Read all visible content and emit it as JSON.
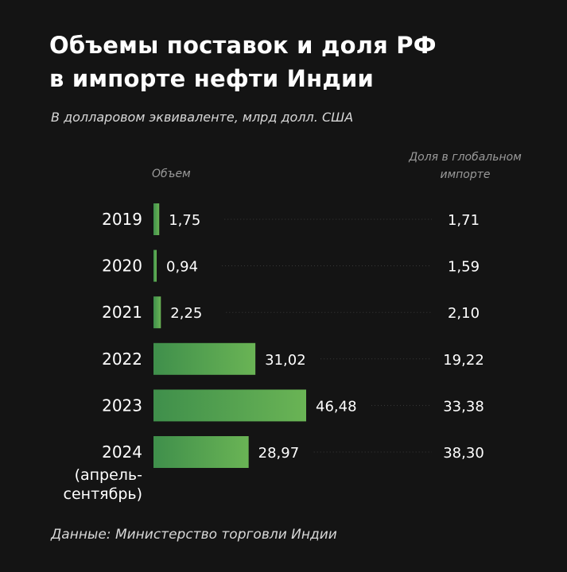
{
  "title_line1": "Объемы поставок и доля РФ",
  "title_line2": "в импорте нефти Индии",
  "subtitle": "В долларовом эквиваленте, млрд долл. США",
  "volume_header": "Объем",
  "share_header_line1": "Доля в глобальном",
  "share_header_line2": "импорте",
  "source": "Данные: Министерство торговли Индии",
  "colors": {
    "background": "#141414",
    "bar_start": "#3f8f4b",
    "bar_end": "#6ab455",
    "leader": "#3a3a3a"
  },
  "chart_data": {
    "type": "bar",
    "orientation": "horizontal",
    "categories": [
      "2019",
      "2020",
      "2021",
      "2022",
      "2023",
      "2024"
    ],
    "category_notes": [
      "",
      "",
      "",
      "",
      "",
      "(апрель-сентябрь)"
    ],
    "category_notes_display": [
      [],
      [],
      [],
      [],
      [],
      [
        "(апрель-",
        "сентябрь)"
      ]
    ],
    "series": [
      {
        "name": "Объем",
        "values": [
          1.75,
          0.94,
          2.25,
          31.02,
          46.48,
          28.97
        ],
        "labels": [
          "1,75",
          "0,94",
          "2,25",
          "31,02",
          "46,48",
          "28,97"
        ]
      },
      {
        "name": "Доля в глобальном импорте",
        "values": [
          1.71,
          1.59,
          2.1,
          19.22,
          33.38,
          38.3
        ],
        "labels": [
          "1,71",
          "1,59",
          "2,10",
          "19,22",
          "33,38",
          "38,30"
        ]
      }
    ],
    "xlim": [
      0,
      46.48
    ],
    "grid": false,
    "legend": "none"
  }
}
